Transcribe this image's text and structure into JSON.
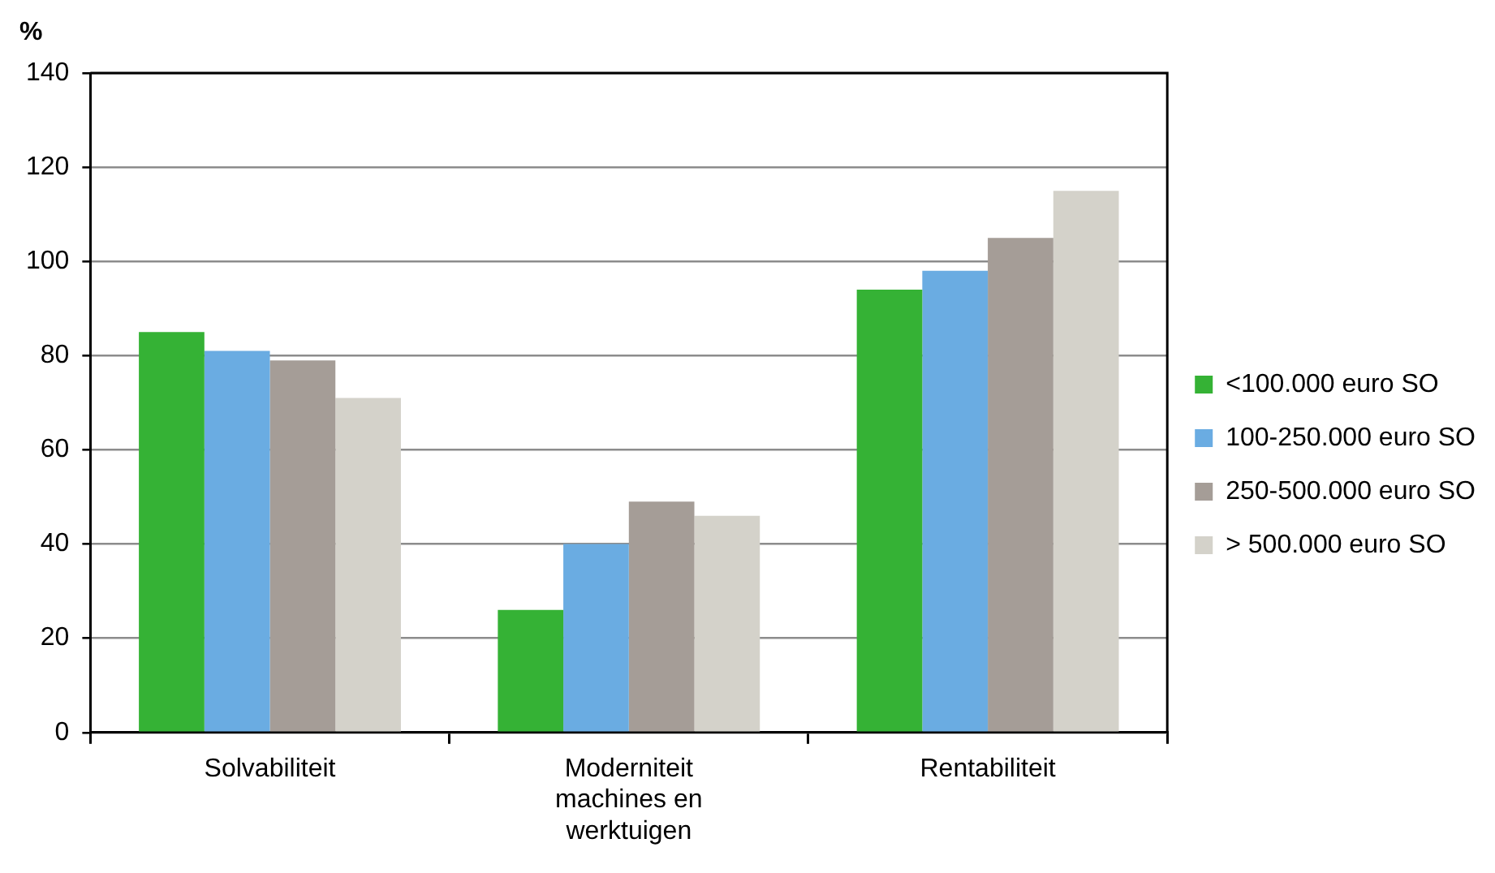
{
  "chart_data": {
    "type": "bar",
    "ylabel": "%",
    "categories": [
      "Solvabiliteit",
      "Moderniteit machines en werktuigen",
      "Rentabiliteit"
    ],
    "series": [
      {
        "name": "<100.000 euro SO",
        "color": "#35b235",
        "values": [
          85,
          26,
          94
        ]
      },
      {
        "name": "100-250.000 euro SO",
        "color": "#6aace2",
        "values": [
          81,
          40,
          98
        ]
      },
      {
        "name": "250-500.000 euro SO",
        "color": "#a59d97",
        "values": [
          79,
          49,
          105
        ]
      },
      {
        "name": "> 500.000 euro SO",
        "color": "#d4d2ca",
        "values": [
          71,
          46,
          115
        ]
      }
    ],
    "ylim": [
      0,
      140
    ],
    "yticks": [
      0,
      20,
      40,
      60,
      80,
      100,
      120,
      140
    ],
    "grid": "y",
    "legend": "right"
  }
}
